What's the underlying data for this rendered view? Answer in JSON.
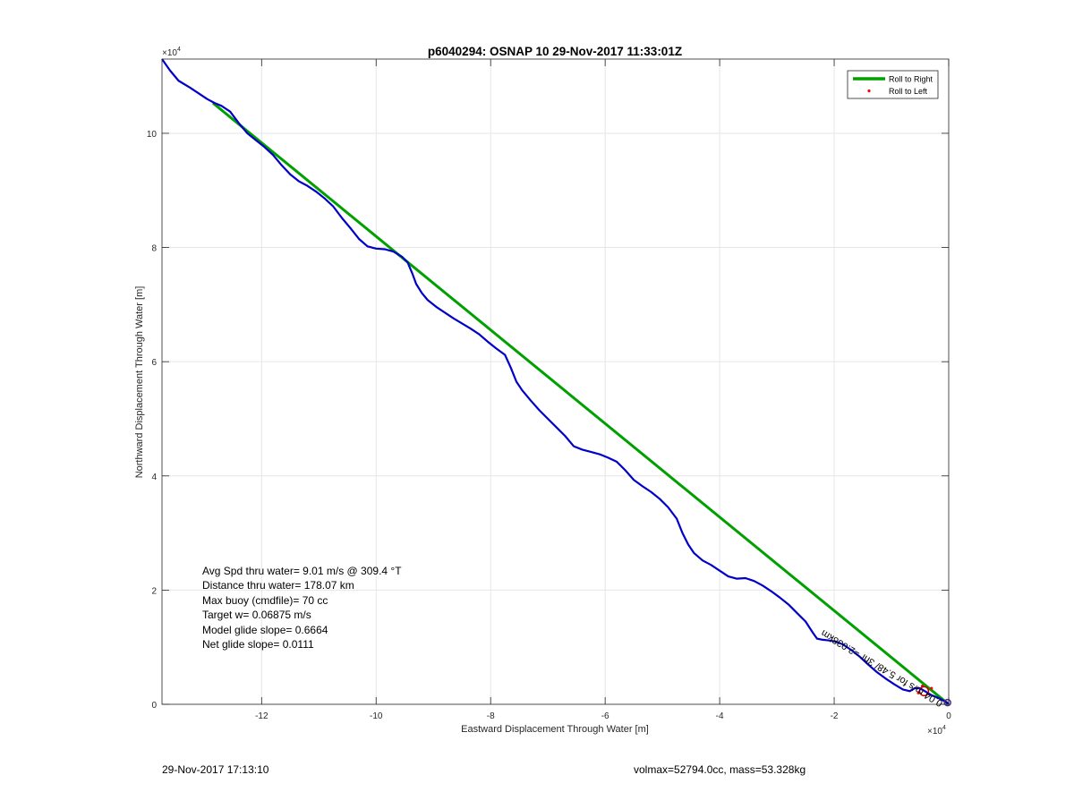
{
  "chart_data": {
    "type": "line",
    "title": "p6040294: OSNAP 10 29-Nov-2017 11:33:01Z",
    "xlabel": "Eastward Displacement Through Water [m]",
    "ylabel": "Northward Displacement Through Water [m]",
    "x_exponent": "×10",
    "x_exponent_power": "4",
    "y_exponent": "×10",
    "y_exponent_power": "4",
    "xlim": [
      -137400,
      0
    ],
    "ylim": [
      0,
      113000
    ],
    "xticks": [
      -120000,
      -100000,
      -80000,
      -60000,
      -40000,
      -20000,
      0
    ],
    "xtick_labels": [
      "-12",
      "-10",
      "-8",
      "-6",
      "-4",
      "-2",
      "0"
    ],
    "yticks": [
      0,
      20000,
      40000,
      60000,
      80000,
      100000
    ],
    "ytick_labels": [
      "0",
      "2",
      "4",
      "6",
      "8",
      "10"
    ],
    "grid": true,
    "legend_position": "top-right",
    "legend": [
      {
        "label": "Roll to Right",
        "color": "#00a000",
        "marker": "line"
      },
      {
        "label": "Roll to Left",
        "color": "#ff0000",
        "marker": "dot"
      }
    ],
    "series": [
      {
        "name": "Roll to Right",
        "color": "#00a000",
        "x": [
          -128500,
          0
        ],
        "y": [
          105300,
          0
        ]
      },
      {
        "name": "Roll to Left",
        "color": "#ff0000",
        "x": [
          -3000,
          -4600,
          -5300
        ],
        "y": [
          2800,
          3200,
          2000
        ]
      },
      {
        "name": "",
        "color": "#0000c8",
        "x": [
          -137400,
          -136000,
          -134500,
          -132500,
          -131000,
          -129500,
          -128200,
          -127000,
          -125500,
          -124000,
          -122500,
          -121000,
          -119500,
          -118000,
          -116500,
          -115000,
          -113500,
          -112000,
          -110500,
          -109000,
          -107500,
          -106000,
          -104500,
          -103000,
          -101500,
          -100000,
          -98500,
          -97000,
          -95500,
          -94500,
          -93700,
          -93000,
          -92000,
          -91000,
          -89500,
          -88000,
          -86500,
          -85000,
          -83500,
          -82000,
          -80500,
          -79000,
          -77500,
          -76500,
          -75500,
          -74500,
          -73000,
          -71500,
          -70000,
          -68500,
          -67000,
          -65500,
          -64000,
          -62500,
          -61000,
          -59500,
          -58000,
          -56500,
          -55000,
          -53500,
          -52000,
          -50500,
          -49000,
          -47500,
          -46500,
          -45500,
          -44500,
          -43000,
          -41500,
          -40000,
          -38500,
          -37000,
          -35500,
          -34000,
          -32500,
          -31000,
          -29500,
          -28000,
          -26500,
          -25000,
          -23700,
          -23000,
          -22000,
          -21000,
          -19800,
          -18500,
          -17000,
          -15500,
          -14000,
          -12500,
          -11000,
          -9500,
          -8000,
          -6800,
          -6000,
          -5000,
          -4000,
          -3000,
          -2000,
          -1000,
          -300,
          0
        ],
        "y": [
          113000,
          111000,
          109200,
          108000,
          107000,
          106000,
          105300,
          104800,
          103800,
          101800,
          100000,
          98800,
          97600,
          96200,
          94400,
          92800,
          91600,
          90800,
          89800,
          88600,
          87200,
          85200,
          83400,
          81500,
          80200,
          79800,
          79700,
          79300,
          78400,
          77400,
          75500,
          73600,
          72000,
          70800,
          69600,
          68600,
          67600,
          66700,
          65800,
          64800,
          63500,
          62300,
          61200,
          59000,
          56500,
          55000,
          53200,
          51500,
          50000,
          48500,
          47000,
          45200,
          44600,
          44200,
          43800,
          43200,
          42500,
          41000,
          39300,
          38200,
          37200,
          36000,
          34500,
          32500,
          30000,
          28000,
          26500,
          25200,
          24400,
          23400,
          22400,
          22000,
          22100,
          21600,
          20800,
          19800,
          18700,
          17500,
          16000,
          14500,
          12500,
          11500,
          11300,
          11200,
          11000,
          10500,
          9500,
          8300,
          6900,
          5600,
          4500,
          3500,
          2600,
          2300,
          2800,
          2800,
          2200,
          1600,
          1200,
          700,
          300,
          0
        ]
      }
    ],
    "stats_lines": [
      "Avg Spd thru water=  9.01 m/s @ 309.4 °T",
      "Distance thru water= 178.07 km",
      "Max buoy (cmdfile)= 70 cc",
      "Target w= 0.06875 m/s",
      "Model glide slope= 0.6664",
      "Net glide slope= 0.0111"
    ],
    "current_annotation": "0.04 m/s for 5.48/ 3hr =2.038km",
    "footer_left": "29-Nov-2017 17:13:10",
    "footer_right": "volmax=52794.0cc, mass=53.328kg"
  }
}
